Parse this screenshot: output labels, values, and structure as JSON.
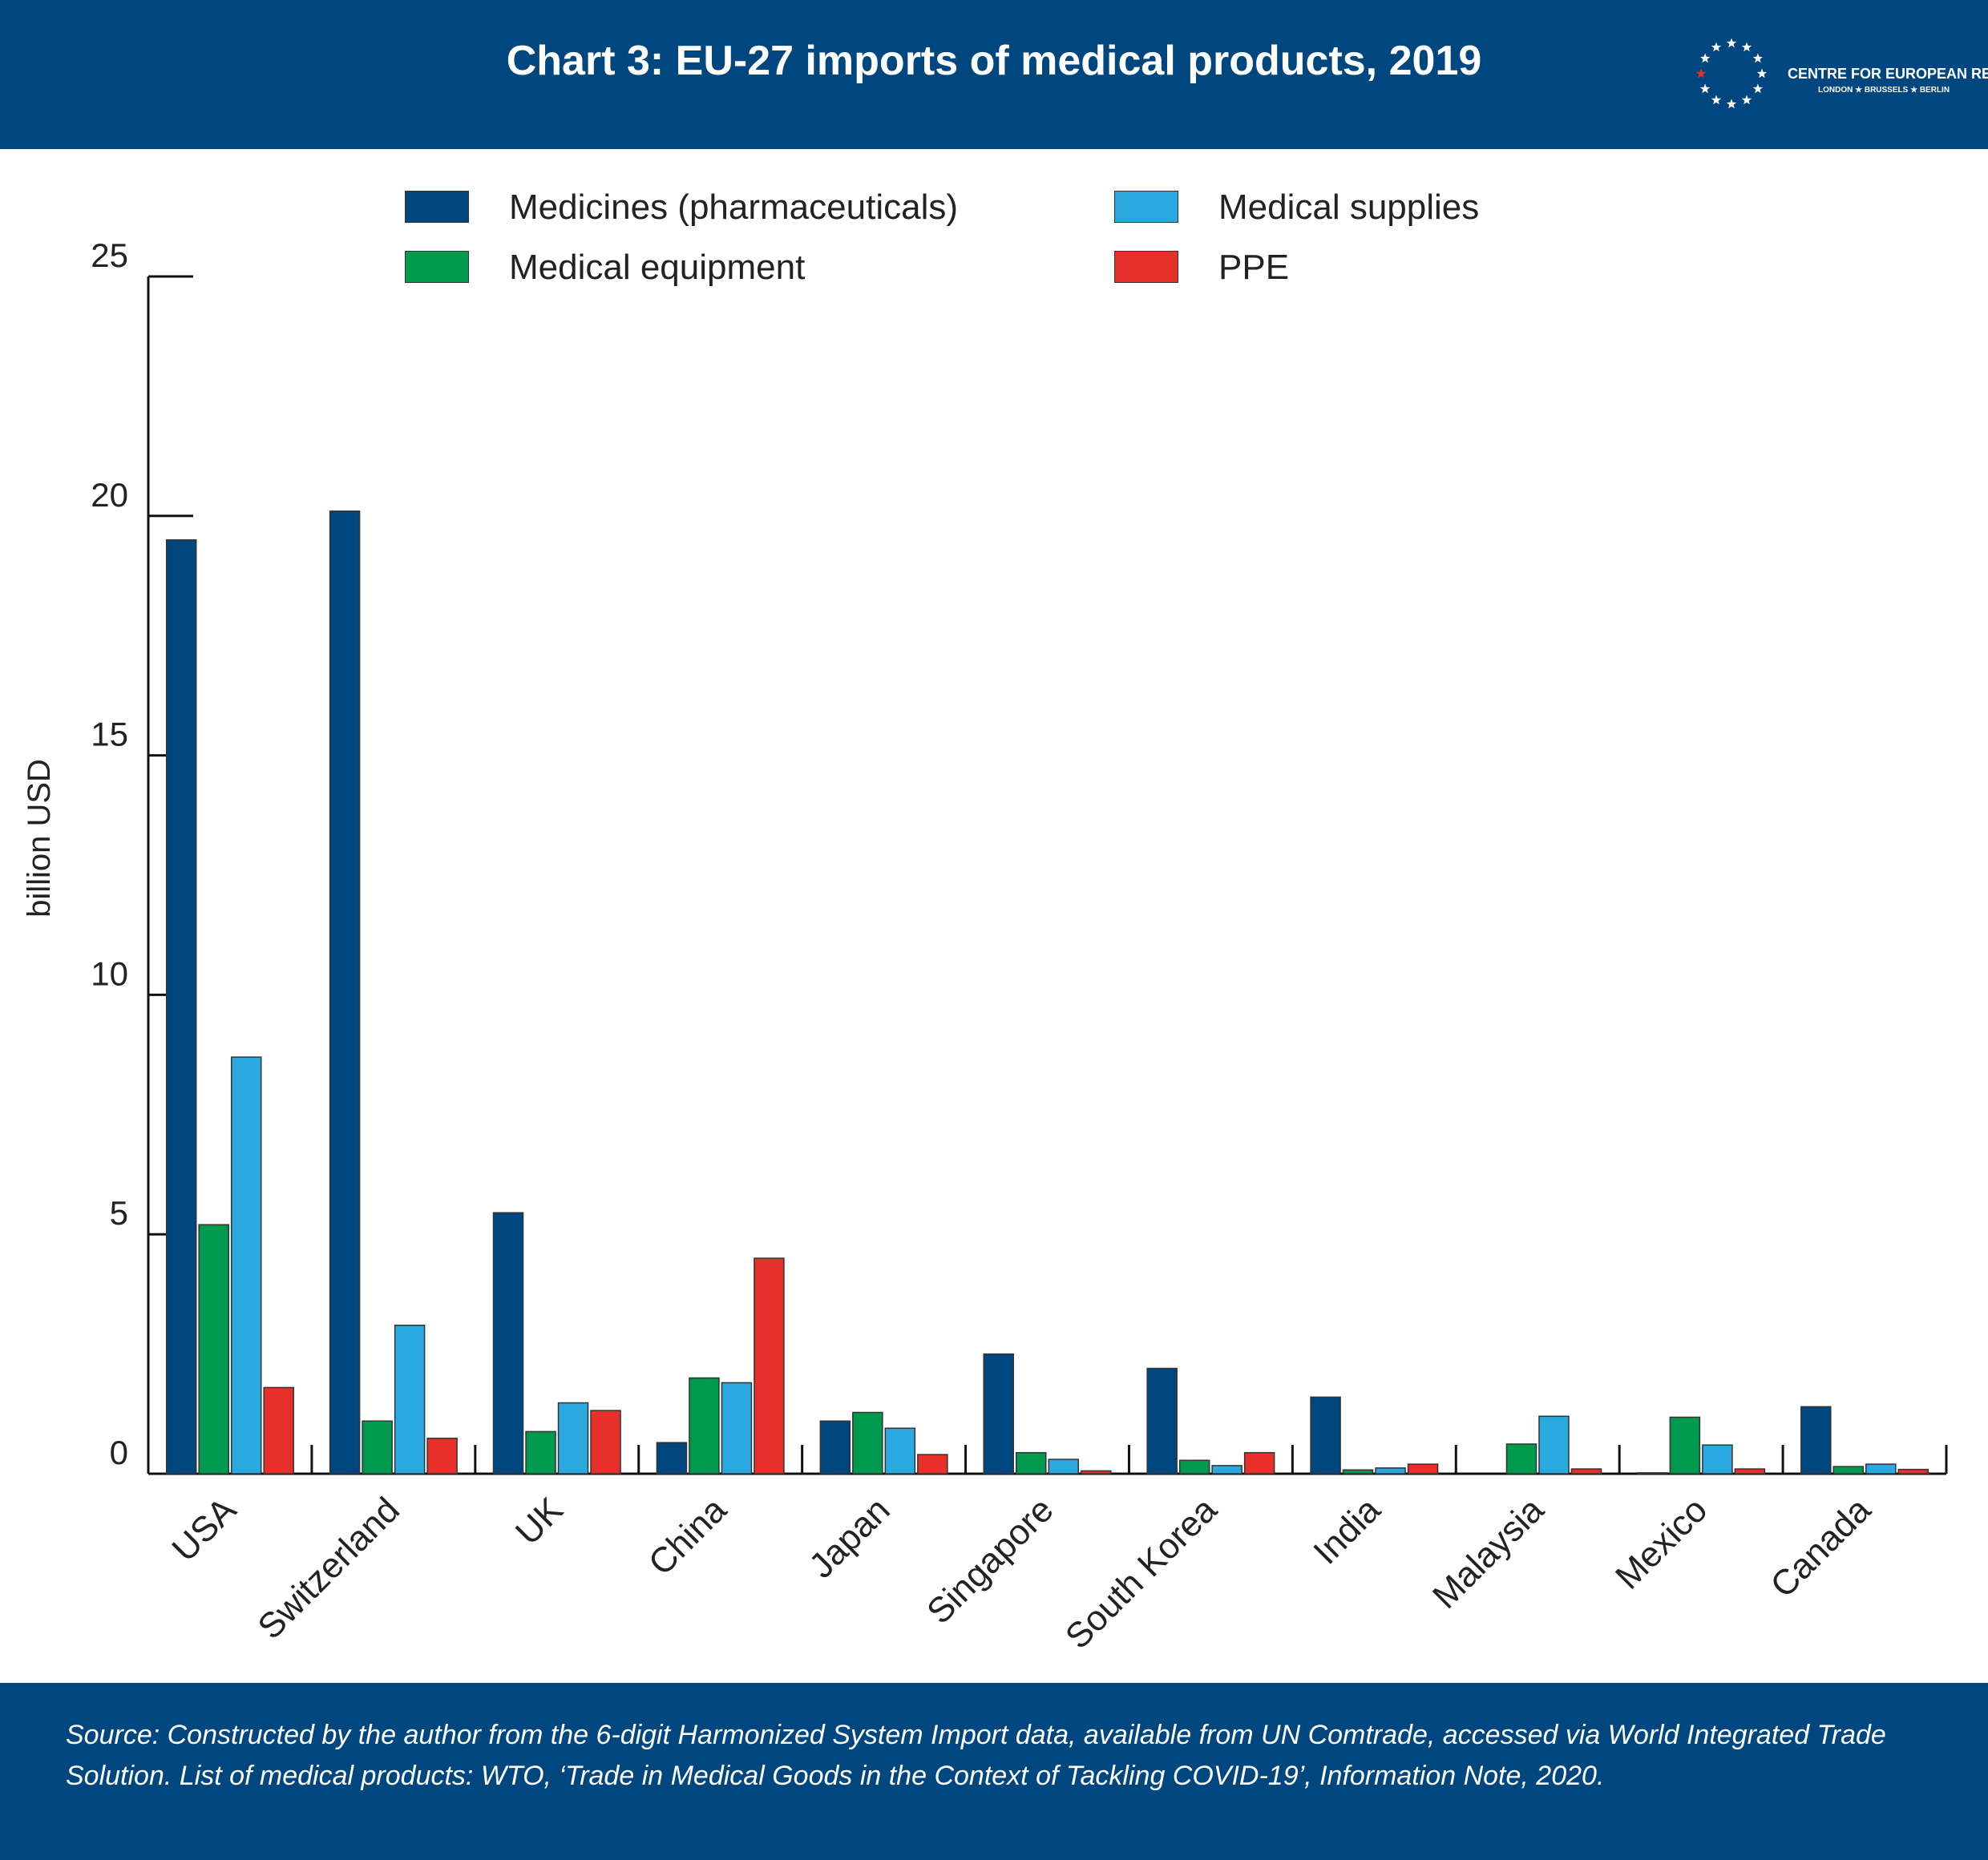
{
  "header": {
    "title": "Chart 3: EU-27 imports of medical products, 2019",
    "logo_name": "CENTRE FOR EUROPEAN REFORM",
    "logo_sub": "LONDON ★ BRUSSELS ★ BERLIN"
  },
  "footer": {
    "source": "Source: Constructed by the author from the 6-digit Harmonized System Import data, available from UN Comtrade, accessed via World Integrated Trade Solution. List of medical products: WTO, ‘Trade in Medical Goods in the Context of Tackling COVID-19’, Information Note, 2020."
  },
  "colors": {
    "header_bg": "#00467f",
    "medicines": "#00467f",
    "equipment": "#009a4e",
    "supplies": "#2aa8e0",
    "ppe": "#e8302b"
  },
  "chart_data": {
    "type": "bar",
    "title": "Chart 3: EU-27 imports of medical products, 2019",
    "xlabel": "",
    "ylabel": "billion USD",
    "ylim": [
      0,
      25
    ],
    "yticks": [
      0,
      5,
      10,
      15,
      20,
      25
    ],
    "grid": false,
    "legend_position": "top",
    "categories": [
      "USA",
      "Switzerland",
      "UK",
      "China",
      "Japan",
      "Singapore",
      "South Korea",
      "India",
      "Malaysia",
      "Mexico",
      "Canada"
    ],
    "series": [
      {
        "name": "Medicines (pharmaceuticals)",
        "color": "#00467f",
        "values": [
          19.5,
          20.1,
          5.45,
          0.65,
          1.1,
          2.5,
          2.2,
          1.6,
          0.0,
          0.02,
          1.4
        ]
      },
      {
        "name": "Medical equipment",
        "color": "#009a4e",
        "values": [
          5.2,
          1.1,
          0.88,
          2.0,
          1.28,
          0.44,
          0.28,
          0.08,
          0.62,
          1.18,
          0.15
        ]
      },
      {
        "name": "Medical supplies",
        "color": "#2aa8e0",
        "values": [
          8.7,
          3.1,
          1.48,
          1.9,
          0.95,
          0.3,
          0.17,
          0.12,
          1.2,
          0.6,
          0.2
        ]
      },
      {
        "name": "PPE",
        "color": "#e8302b",
        "values": [
          1.8,
          0.74,
          1.32,
          4.5,
          0.4,
          0.06,
          0.44,
          0.2,
          0.1,
          0.1,
          0.09
        ]
      }
    ]
  }
}
